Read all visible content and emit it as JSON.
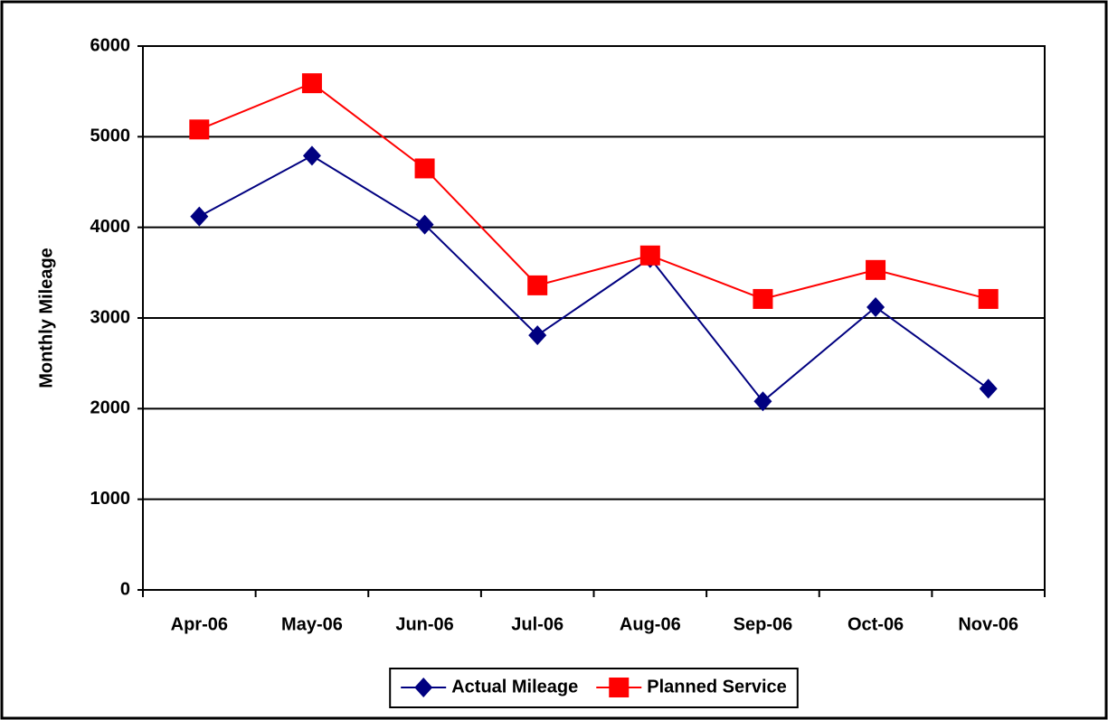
{
  "chart_data": {
    "type": "line",
    "y_label": "Monthly Mileage",
    "categories": [
      "Apr-06",
      "May-06",
      "Jun-06",
      "Jul-06",
      "Aug-06",
      "Sep-06",
      "Oct-06",
      "Nov-06"
    ],
    "series": [
      {
        "name": "Actual Mileage",
        "color": "#000080",
        "marker": "diamond",
        "values": [
          4120,
          4790,
          4030,
          2810,
          3660,
          2080,
          3120,
          2220
        ]
      },
      {
        "name": "Planned Service",
        "color": "#ff0000",
        "marker": "square",
        "values": [
          5080,
          5590,
          4650,
          3360,
          3690,
          3210,
          3530,
          3210
        ]
      }
    ],
    "ylim": [
      0,
      6000
    ],
    "yticks": [
      0,
      1000,
      2000,
      3000,
      4000,
      5000,
      6000
    ],
    "grid": true,
    "legend": "bottom"
  }
}
